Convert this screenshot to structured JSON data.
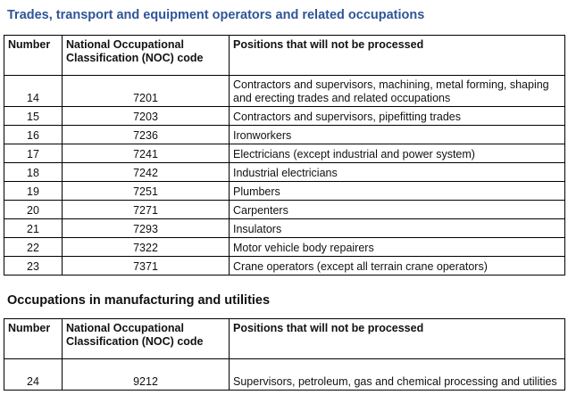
{
  "sections": [
    {
      "title": "Trades, transport and equipment operators and related occupations",
      "headers": {
        "number": "Number",
        "noc": "National Occupational Classification (NOC) code",
        "positions": "Positions that will not be processed"
      },
      "rows": [
        {
          "number": "14",
          "noc": "7201",
          "position": "Contractors and supervisors, machining, metal forming, shaping and erecting trades and related occupations"
        },
        {
          "number": "15",
          "noc": "7203",
          "position": "Contractors and supervisors, pipefitting trades"
        },
        {
          "number": "16",
          "noc": "7236",
          "position": "Ironworkers"
        },
        {
          "number": "17",
          "noc": "7241",
          "position": "Electricians (except industrial and power system)"
        },
        {
          "number": "18",
          "noc": "7242",
          "position": "Industrial electricians"
        },
        {
          "number": "19",
          "noc": "7251",
          "position": "Plumbers"
        },
        {
          "number": "20",
          "noc": "7271",
          "position": "Carpenters"
        },
        {
          "number": "21",
          "noc": "7293",
          "position": "Insulators"
        },
        {
          "number": "22",
          "noc": "7322",
          "position": "Motor vehicle body repairers"
        },
        {
          "number": "23",
          "noc": "7371",
          "position": "Crane operators (except all terrain crane operators)"
        }
      ]
    },
    {
      "title": "Occupations in manufacturing and utilities",
      "headers": {
        "number": "Number",
        "noc": "National Occupational Classification (NOC) code",
        "positions": "Positions that will not be processed"
      },
      "rows": [
        {
          "number": "24",
          "noc": "9212",
          "position": "Supervisors, petroleum, gas and chemical processing and utilities"
        }
      ]
    }
  ],
  "colors": {
    "title_blue": "#2f5597",
    "border": "#000000"
  }
}
